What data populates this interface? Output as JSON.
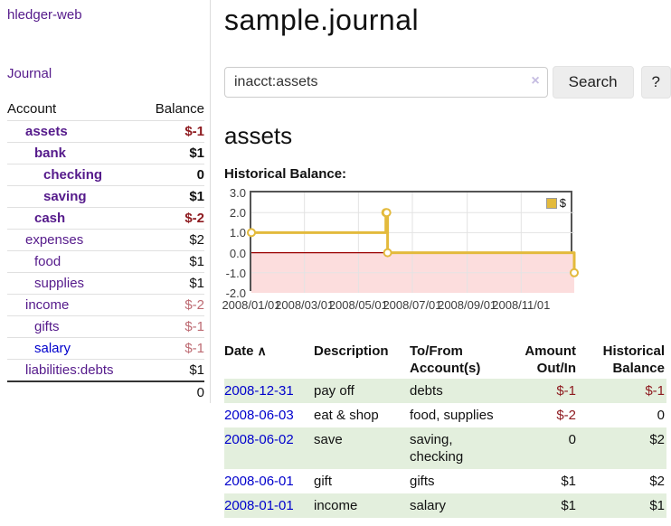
{
  "colors": {
    "link_purple": "#551a8b",
    "link_blue": "#0000cc",
    "negative_strong": "#8e1b20",
    "negative_soft": "#bd6a72",
    "row_stripe_green": "#e3efdd",
    "chart_line_gold": "#e3ba3c",
    "chart_negative_region": "#fcdddd",
    "chart_zero_line": "#990000"
  },
  "sidebar": {
    "app_title": "hledger-web",
    "journal_link": "Journal",
    "accounts": {
      "header_account": "Account",
      "header_balance": "Balance",
      "rows": [
        {
          "name": "assets",
          "balance": "$-1"
        },
        {
          "name": "bank",
          "balance": "$1"
        },
        {
          "name": "checking",
          "balance": "0"
        },
        {
          "name": "saving",
          "balance": "$1"
        },
        {
          "name": "cash",
          "balance": "$-2"
        },
        {
          "name": "expenses",
          "balance": "$2"
        },
        {
          "name": "food",
          "balance": "$1"
        },
        {
          "name": "supplies",
          "balance": "$1"
        },
        {
          "name": "income",
          "balance": "$-2"
        },
        {
          "name": "gifts",
          "balance": "$-1"
        },
        {
          "name": "salary",
          "balance": "$-1"
        },
        {
          "name": "liabilities:debts",
          "balance": "$1"
        }
      ],
      "total": "0"
    }
  },
  "main": {
    "title": "sample.journal",
    "search": {
      "value": "inacct:assets",
      "clear_icon": "×",
      "button_label": "Search",
      "help_label": "?"
    },
    "account_heading": "assets",
    "chart_label": "Historical Balance:"
  },
  "chart_data": {
    "type": "line",
    "step": true,
    "title": "Historical Balance:",
    "series": [
      {
        "name": "$",
        "color": "#e3ba3c",
        "points": [
          [
            "2008-01-01",
            1
          ],
          [
            "2008-06-01",
            2
          ],
          [
            "2008-06-02",
            2
          ],
          [
            "2008-06-03",
            0
          ],
          [
            "2008-12-31",
            -1
          ]
        ]
      }
    ],
    "xlim": [
      "2008-01-01",
      "2008-12-31"
    ],
    "ylim": [
      -2,
      3
    ],
    "x_ticks": [
      "2008/01/01",
      "2008/03/01",
      "2008/05/01",
      "2008/07/01",
      "2008/09/01",
      "2008/11/01"
    ],
    "y_ticks": [
      3,
      2,
      1,
      0,
      -1,
      -2
    ],
    "legend": {
      "label": "$",
      "position": "top-right"
    },
    "grid": true,
    "negative_region_color": "#fcdddd",
    "zero_line_color": "#990000"
  },
  "register": {
    "headers": {
      "date": "Date",
      "description": "Description",
      "account": "To/From Account(s)",
      "amount": "Amount Out/In",
      "balance": "Historical Balance"
    },
    "sort_indicator": "∧",
    "rows": [
      {
        "date": "2008-12-31",
        "description": "pay off",
        "accounts": "debts",
        "amount": "$-1",
        "balance": "$-1"
      },
      {
        "date": "2008-06-03",
        "description": "eat & shop",
        "accounts": "food, supplies",
        "amount": "$-2",
        "balance": "0"
      },
      {
        "date": "2008-06-02",
        "description": "save",
        "accounts": "saving, checking",
        "amount": "0",
        "balance": "$2"
      },
      {
        "date": "2008-06-01",
        "description": "gift",
        "accounts": "gifts",
        "amount": "$1",
        "balance": "$2"
      },
      {
        "date": "2008-01-01",
        "description": "income",
        "accounts": "salary",
        "amount": "$1",
        "balance": "$1"
      }
    ]
  }
}
